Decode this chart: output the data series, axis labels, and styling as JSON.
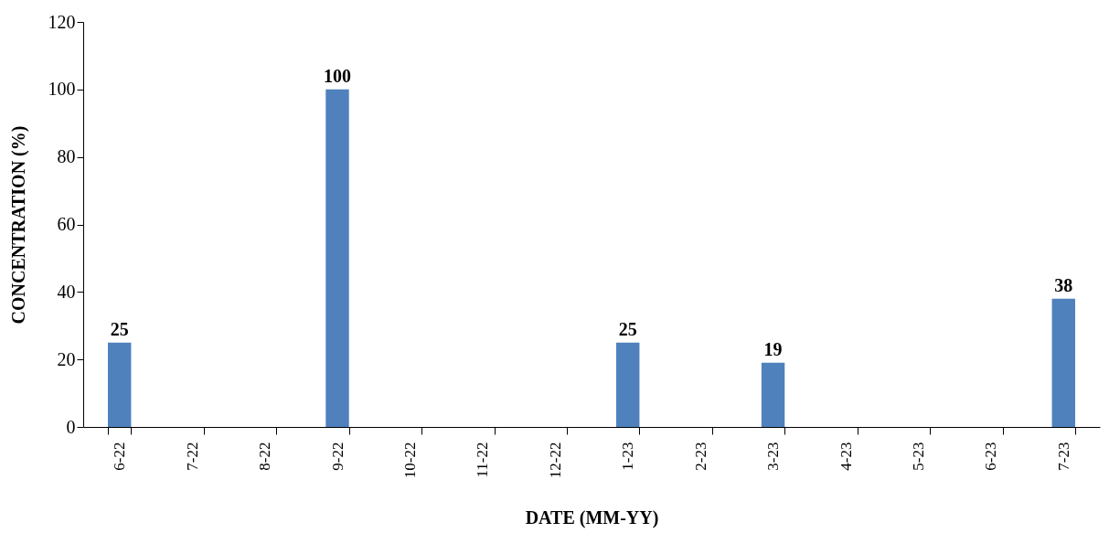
{
  "chart_data": {
    "type": "bar",
    "xlabel": "DATE (MM-YY)",
    "ylabel": "CONCENTRATION (%)",
    "categories": [
      "6-22",
      "7-22",
      "8-22",
      "9-22",
      "10-22",
      "11-22",
      "12-22",
      "1-23",
      "2-23",
      "3-23",
      "4-23",
      "5-23",
      "6-23",
      "7-23"
    ],
    "values": [
      25,
      null,
      null,
      100,
      null,
      null,
      null,
      25,
      null,
      19,
      null,
      null,
      null,
      38
    ],
    "value_labels": [
      "25",
      null,
      null,
      "100",
      null,
      null,
      null,
      "25",
      null,
      "19",
      null,
      null,
      null,
      "38"
    ],
    "color": "#4f81bd",
    "ylim": [
      0,
      120
    ],
    "yticks": [
      0,
      20,
      40,
      60,
      80,
      100,
      120
    ],
    "grid": false
  }
}
